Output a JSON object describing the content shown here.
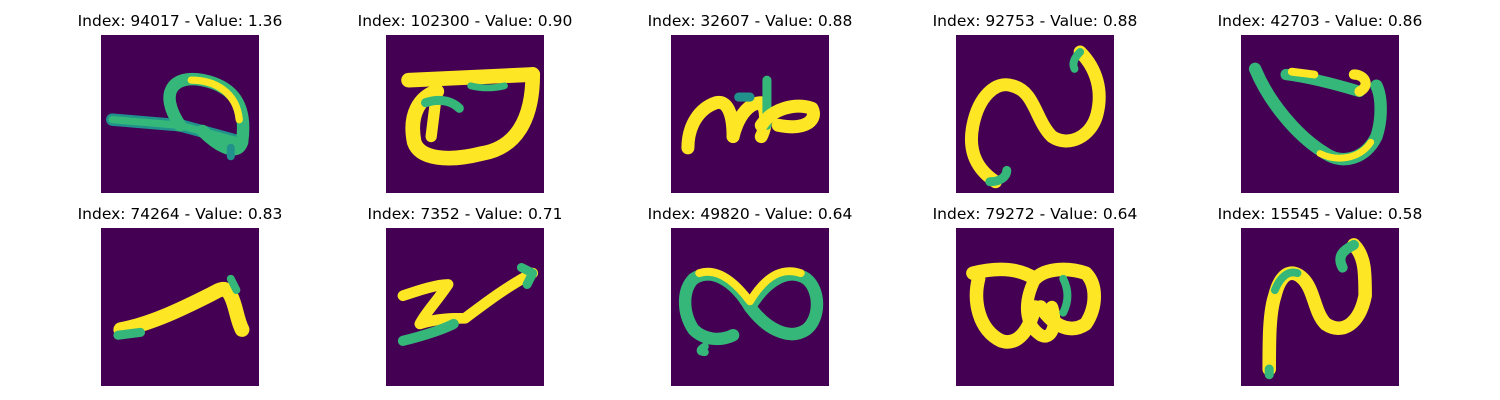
{
  "colors": {
    "background": "#440154",
    "stroke_bright": "#fde725",
    "stroke_mid": "#35b779",
    "stroke_edge": "#21918c"
  },
  "tiles": [
    {
      "title": "Index: 94017 - Value: 1.36",
      "glyph": "glyph-a"
    },
    {
      "title": "Index: 102300 - Value: 0.90",
      "glyph": "glyph-b"
    },
    {
      "title": "Index: 32607 - Value: 0.88",
      "glyph": "glyph-c"
    },
    {
      "title": "Index: 92753 - Value: 0.88",
      "glyph": "glyph-d"
    },
    {
      "title": "Index: 42703 - Value: 0.86",
      "glyph": "glyph-e"
    },
    {
      "title": "Index: 74264 - Value: 0.83",
      "glyph": "glyph-f"
    },
    {
      "title": "Index: 7352 - Value: 0.71",
      "glyph": "glyph-g"
    },
    {
      "title": "Index: 49820 - Value: 0.64",
      "glyph": "glyph-h"
    },
    {
      "title": "Index: 79272 - Value: 0.64",
      "glyph": "glyph-i"
    },
    {
      "title": "Index: 15545 - Value: 0.58",
      "glyph": "glyph-j"
    }
  ]
}
